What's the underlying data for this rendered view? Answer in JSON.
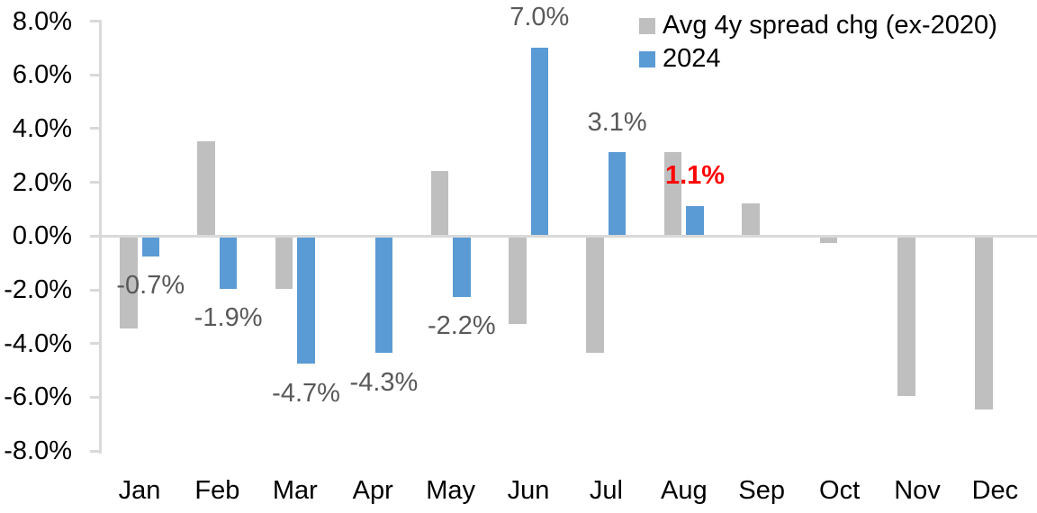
{
  "chart_data": {
    "type": "bar",
    "title": "",
    "categories": [
      "Jan",
      "Feb",
      "Mar",
      "Apr",
      "May",
      "Jun",
      "Jul",
      "Aug",
      "Sep",
      "Oct",
      "Nov",
      "Dec"
    ],
    "series": [
      {
        "name": "Avg 4y spread chg (ex-2020)",
        "color": "#BFBFBF",
        "values": [
          -3.4,
          3.5,
          -1.9,
          0.0,
          2.4,
          -3.2,
          -4.3,
          3.1,
          1.2,
          -0.2,
          -5.9,
          -6.4
        ]
      },
      {
        "name": "2024",
        "color": "#5B9BD5",
        "values": [
          -0.7,
          -1.9,
          -4.7,
          -4.3,
          -2.2,
          7.0,
          3.1,
          1.1,
          null,
          null,
          null,
          null
        ]
      }
    ],
    "data_labels": [
      {
        "month_index": 0,
        "text": "-0.7%",
        "series": "2024",
        "placement": "below",
        "color": "#595959",
        "bold": false
      },
      {
        "month_index": 1,
        "text": "-1.9%",
        "series": "2024",
        "placement": "below",
        "color": "#595959",
        "bold": false
      },
      {
        "month_index": 2,
        "text": "-4.7%",
        "series": "2024",
        "placement": "below",
        "color": "#595959",
        "bold": false
      },
      {
        "month_index": 3,
        "text": "-4.3%",
        "series": "2024",
        "placement": "below",
        "color": "#595959",
        "bold": false
      },
      {
        "month_index": 4,
        "text": "-2.2%",
        "series": "2024",
        "placement": "below",
        "color": "#595959",
        "bold": false
      },
      {
        "month_index": 5,
        "text": "7.0%",
        "series": "2024",
        "placement": "above",
        "color": "#595959",
        "bold": false
      },
      {
        "month_index": 6,
        "text": "3.1%",
        "series": "2024",
        "placement": "above",
        "color": "#595959",
        "bold": false
      },
      {
        "month_index": 7,
        "text": "1.1%",
        "series": "2024",
        "placement": "above",
        "color": "#FF0000",
        "bold": true
      }
    ],
    "y_axis": {
      "min": -8,
      "max": 8,
      "step": 2,
      "tick_labels": [
        "8.0%",
        "6.0%",
        "4.0%",
        "2.0%",
        "0.0%",
        "-2.0%",
        "-4.0%",
        "-6.0%",
        "-8.0%"
      ]
    },
    "legend": {
      "position": "top-right",
      "entries": [
        "Avg 4y spread chg (ex-2020)",
        "2024"
      ]
    },
    "grid": false,
    "colors": {
      "axis_line": "#D9D9D9",
      "axis_text": "#000000",
      "data_label": "#595959",
      "highlight_label": "#FF0000"
    }
  }
}
